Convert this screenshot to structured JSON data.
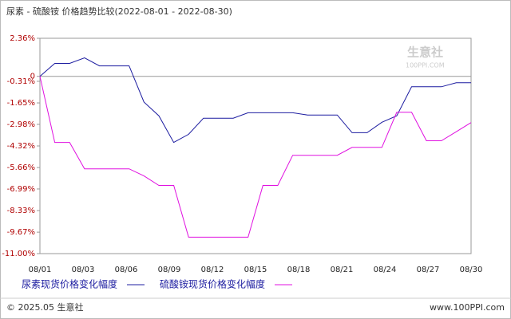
{
  "chart_data": {
    "type": "line",
    "title": "尿素 - 硫酸铵 价格趋势比较(2022-08-01 - 2022-08-30)",
    "xticks": [
      "08/01",
      "08/03",
      "08/06",
      "08/09",
      "08/12",
      "08/15",
      "08/18",
      "08/21",
      "08/24",
      "08/27",
      "08/30"
    ],
    "ylim": [
      -11.0,
      2.36
    ],
    "yticks": [
      {
        "value": 2.36,
        "label": "2.36%"
      },
      0,
      {
        "value": -0.31,
        "label": "-0.31%"
      },
      {
        "value": -1.65,
        "label": "-1.65%"
      },
      {
        "value": -2.98,
        "label": "-2.98%"
      },
      {
        "value": -4.32,
        "label": "-4.32%"
      },
      {
        "value": -5.66,
        "label": "-5.66%"
      },
      {
        "value": -6.99,
        "label": "-6.99%"
      },
      {
        "value": -8.33,
        "label": "-8.33%"
      },
      {
        "value": -9.67,
        "label": "-9.67%"
      },
      {
        "value": -11.0,
        "label": "-11.00%"
      }
    ],
    "series": [
      {
        "name": "尿素现货价格变化幅度",
        "color": "#1c1ca0",
        "values": [
          0,
          0.8,
          0.8,
          1.15,
          0.65,
          0.65,
          0.65,
          -1.6,
          -2.45,
          -4.1,
          -3.6,
          -2.6,
          -2.6,
          -2.6,
          -2.26,
          -2.26,
          -2.26,
          -2.26,
          -2.4,
          -2.4,
          -2.4,
          -3.5,
          -3.5,
          -2.85,
          -2.45,
          -0.65,
          -0.65,
          -0.65,
          -0.4,
          -0.4
        ]
      },
      {
        "name": "硫酸铵现货价格变化幅度",
        "color": "#e010e0",
        "values": [
          0,
          -4.1,
          -4.1,
          -5.74,
          -5.74,
          -5.74,
          -5.74,
          -6.18,
          -6.77,
          -6.77,
          -9.98,
          -9.98,
          -9.98,
          -9.98,
          -9.98,
          -6.77,
          -6.77,
          -4.9,
          -4.9,
          -4.9,
          -4.9,
          -4.41,
          -4.41,
          -4.41,
          -2.23,
          -2.23,
          -4.0,
          -4.0,
          -3.44,
          -2.87
        ]
      }
    ],
    "watermark": [
      "生意社",
      "100PPI.COM"
    ],
    "footer_left": "© 2025.05 生意社",
    "footer_right": "www.100PPI.com"
  }
}
